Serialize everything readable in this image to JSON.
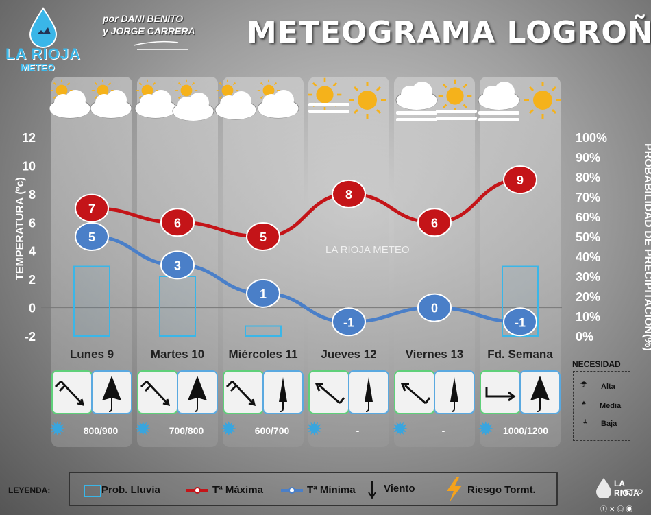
{
  "title": "METEOGRAMA LOGROÑO",
  "authors": {
    "line1": "por DANI BENITO",
    "line2": "y JORGE CARRERA"
  },
  "logo": {
    "name": "LA RIOJA",
    "sub": "METEO"
  },
  "watermark": "LA RIOJA METEO",
  "footer_logo": {
    "name": "LA RIOJA",
    "sub": "METEO"
  },
  "colors": {
    "max": "#c41418",
    "min": "#4a7fc8",
    "prob": "#3ab6e8"
  },
  "chart_data": {
    "type": "line",
    "categories": [
      "Lunes 9",
      "Martes 10",
      "Miércoles 11",
      "Jueves 12",
      "Viernes 13",
      "Fd. Semana"
    ],
    "ylabel": "TEMPERATURA (ºc)",
    "y2label": "PROBABILIDAD DE PRECIPITACIÓN(%)",
    "ylim": [
      -2,
      12
    ],
    "y2lim": [
      0,
      100
    ],
    "yticks": [
      "12",
      "10",
      "8",
      "6",
      "4",
      "2",
      "0",
      "-2"
    ],
    "y2ticks": [
      "100%",
      "90%",
      "80%",
      "70%",
      "60%",
      "50%",
      "40%",
      "30%",
      "20%",
      "10%",
      "0%"
    ],
    "series": [
      {
        "name": "Tª Máxima",
        "values": [
          7,
          6,
          5,
          8,
          6,
          9
        ]
      },
      {
        "name": "Tª Mínima",
        "values": [
          5,
          3,
          1,
          -1,
          0,
          -1
        ]
      },
      {
        "name": "Prob. Lluvia",
        "values": [
          35,
          30,
          5,
          0,
          0,
          35
        ]
      }
    ]
  },
  "days": [
    {
      "label": "Lunes 9",
      "snow": "800/900",
      "wind_dir": "nw",
      "umbrella": "alta"
    },
    {
      "label": "Martes 10",
      "snow": "700/800",
      "wind_dir": "nw",
      "umbrella": "alta"
    },
    {
      "label": "Miércoles 11",
      "snow": "600/700",
      "wind_dir": "nw",
      "umbrella": "media"
    },
    {
      "label": "Jueves 12",
      "snow": "-",
      "wind_dir": "se",
      "umbrella": "baja"
    },
    {
      "label": "Viernes 13",
      "snow": "-",
      "wind_dir": "se",
      "umbrella": "baja"
    },
    {
      "label": "Fd. Semana",
      "snow": "1000/1200",
      "wind_dir": "w",
      "umbrella": "alta"
    }
  ],
  "necesidad": {
    "title": "NECESIDAD",
    "alta": "Alta",
    "media": "Media",
    "baja": "Baja"
  },
  "legend": {
    "title": "LEYENDA:",
    "prob": "Prob. Lluvia",
    "max": "Tª Máxima",
    "min": "Tª Mínima",
    "wind": "Viento",
    "storm": "Riesgo Tormt."
  }
}
